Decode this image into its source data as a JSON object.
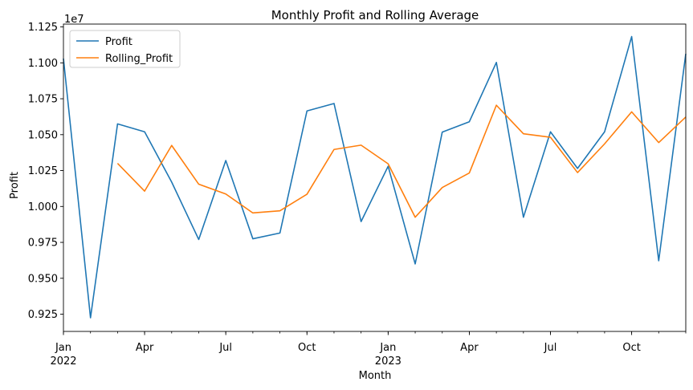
{
  "chart_data": {
    "type": "line",
    "title": "Monthly Profit and Rolling Average",
    "xlabel": "Month",
    "ylabel": "Profit",
    "y_offset_text": "1e7",
    "y_multiplier": 10000000,
    "ylim": [
      0.913,
      1.127
    ],
    "x": [
      "2022-01",
      "2022-02",
      "2022-03",
      "2022-04",
      "2022-05",
      "2022-06",
      "2022-07",
      "2022-08",
      "2022-09",
      "2022-10",
      "2022-11",
      "2022-12",
      "2023-01",
      "2023-02",
      "2023-03",
      "2023-04",
      "2023-05",
      "2023-06",
      "2023-07",
      "2023-08",
      "2023-09",
      "2023-10",
      "2023-11",
      "2023-12"
    ],
    "x_tick_labels": [
      {
        "label": "Jan",
        "sublabel": "2022",
        "index": 0
      },
      {
        "label": "Apr",
        "sublabel": "",
        "index": 3
      },
      {
        "label": "Jul",
        "sublabel": "",
        "index": 6
      },
      {
        "label": "Oct",
        "sublabel": "",
        "index": 9
      },
      {
        "label": "Jan",
        "sublabel": "2023",
        "index": 12
      },
      {
        "label": "Apr",
        "sublabel": "",
        "index": 15
      },
      {
        "label": "Jul",
        "sublabel": "",
        "index": 18
      },
      {
        "label": "Oct",
        "sublabel": "",
        "index": 21
      }
    ],
    "y_ticks": [
      "0.925",
      "0.950",
      "0.975",
      "1.000",
      "1.025",
      "1.050",
      "1.075",
      "1.100",
      "1.125"
    ],
    "series": [
      {
        "name": "Profit",
        "color": "#1f77b4",
        "values": [
          11030000,
          9225000,
          10575000,
          10520000,
          10170000,
          9770000,
          10320000,
          9775000,
          9815000,
          10665000,
          10717000,
          9895000,
          10280000,
          9600000,
          10518000,
          10590000,
          11003000,
          9925000,
          10520000,
          10265000,
          10520000,
          11183000,
          9622000,
          11063000
        ]
      },
      {
        "name": "Rolling_Profit",
        "color": "#ff7f0e",
        "values": [
          null,
          null,
          10300000,
          10107000,
          10425000,
          10155000,
          10087000,
          9955000,
          9970000,
          10085000,
          10397000,
          10427000,
          10297000,
          9925000,
          10132000,
          10233000,
          10705000,
          10506000,
          10482000,
          10236000,
          10436000,
          10659000,
          10445000,
          10623000
        ]
      }
    ],
    "legend_position": "top-left",
    "grid": false
  }
}
